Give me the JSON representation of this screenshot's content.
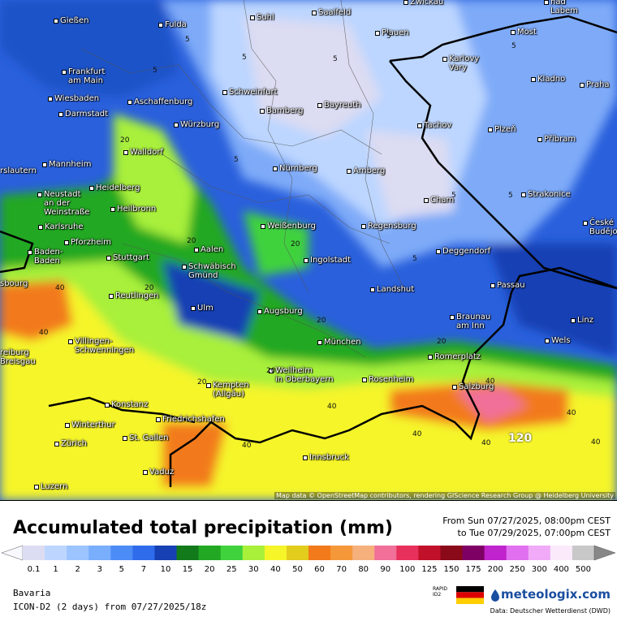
{
  "map": {
    "attribution": "Map data © OpenStreetMap contributors, rendering GIScience Research Group @ Heidelberg University",
    "places": [
      "Gießen",
      "Fulda",
      "Suhl",
      "Saalfeld",
      "Zwickau",
      "Plauen",
      "nad\nLabem",
      "Most",
      "Frankfurt\nam Main",
      "Karlovy\nVary",
      "Kladno",
      "Praha",
      "Wiesbaden",
      "Aschaffenburg",
      "Schweinfurt",
      "Bayreuth",
      "Darmstadt",
      "Bamberg",
      "Würzburg",
      "Tachov",
      "Plzeň",
      "Walldorf",
      "Příbram",
      "rslautern",
      "Mannheim",
      "Nürnberg",
      "Amberg",
      "Heidelberg",
      "Neustadt\nan der\nWeinstraße",
      "Cham",
      "Strakonice",
      "Heilbronn",
      "Karlsruhe",
      "Weißenburg",
      "Regensburg",
      "České\nBudějovice",
      "Pforzheim",
      "Aalen",
      "Baden-\nBaden",
      "Stuttgart",
      "Ingolstadt",
      "Deggendorf",
      "Schwäbisch\nGmünd",
      "Passau",
      "sbourg",
      "Landshut",
      "Reutlingen",
      "Ulm",
      "Augsburg",
      "Braunau\nam Inn",
      "Linz",
      "Wels",
      "Villingen-\nSchwenningen",
      "München",
      "reiburg\nBreisgau",
      "Romerplatz",
      "Weilheim\nin Oberbayern",
      "Rosenheim",
      "Kempten\n(Allgäu)",
      "Salzburg",
      "Konstanz",
      "Friedrichshafen",
      "Winterthur",
      "St. Gallen",
      "Zürich",
      "Innsbruck",
      "Vaduz",
      "Luzern"
    ],
    "contour_labels": [
      5,
      5,
      5,
      5,
      5,
      5,
      5,
      5,
      5,
      5,
      20,
      20,
      20,
      20,
      20,
      20,
      20,
      20,
      40,
      40,
      40,
      40,
      40,
      40,
      40,
      40,
      40,
      120
    ]
  },
  "legend": {
    "title": "Accumulated total precipitation (mm)",
    "from": "From Sun 07/27/2025, 08:00pm CEST",
    "to": "to Tue 07/29/2025, 07:00pm CEST",
    "items": [
      {
        "value": 0.1,
        "color": "#dcdcf2"
      },
      {
        "value": 1,
        "color": "#bcd6ff"
      },
      {
        "value": 2,
        "color": "#9cc4ff"
      },
      {
        "value": 3,
        "color": "#78aefc"
      },
      {
        "value": 5,
        "color": "#4c8cf6"
      },
      {
        "value": 7,
        "color": "#2f6cec"
      },
      {
        "value": 10,
        "color": "#1640b4"
      },
      {
        "value": 15,
        "color": "#137a1c"
      },
      {
        "value": 20,
        "color": "#22a823"
      },
      {
        "value": 25,
        "color": "#40d23c"
      },
      {
        "value": 30,
        "color": "#a8f03a"
      },
      {
        "value": 40,
        "color": "#f5f52a"
      },
      {
        "value": 50,
        "color": "#e2cc1c"
      },
      {
        "value": 60,
        "color": "#f27a1a"
      },
      {
        "value": 70,
        "color": "#f5983a"
      },
      {
        "value": 80,
        "color": "#f6b07c"
      },
      {
        "value": 90,
        "color": "#f0709a"
      },
      {
        "value": 100,
        "color": "#e8305c"
      },
      {
        "value": 125,
        "color": "#c0102a"
      },
      {
        "value": 150,
        "color": "#8a0a1a"
      },
      {
        "value": 175,
        "color": "#7e0064"
      },
      {
        "value": 200,
        "color": "#c024cc"
      },
      {
        "value": 250,
        "color": "#e070f0"
      },
      {
        "value": 300,
        "color": "#f0aaf8"
      },
      {
        "value": 400,
        "color": "#faeafa"
      },
      {
        "value": 500,
        "color": "#c8c8c8"
      }
    ]
  },
  "footer": {
    "region": "Bavaria",
    "model": "ICON-D2 (2 days) from 07/27/2025/18z",
    "rapid": "RAPID",
    "id2": "ID2",
    "brand": "meteologix.com",
    "source": "Data: Deutscher Wetterdienst (DWD)"
  }
}
